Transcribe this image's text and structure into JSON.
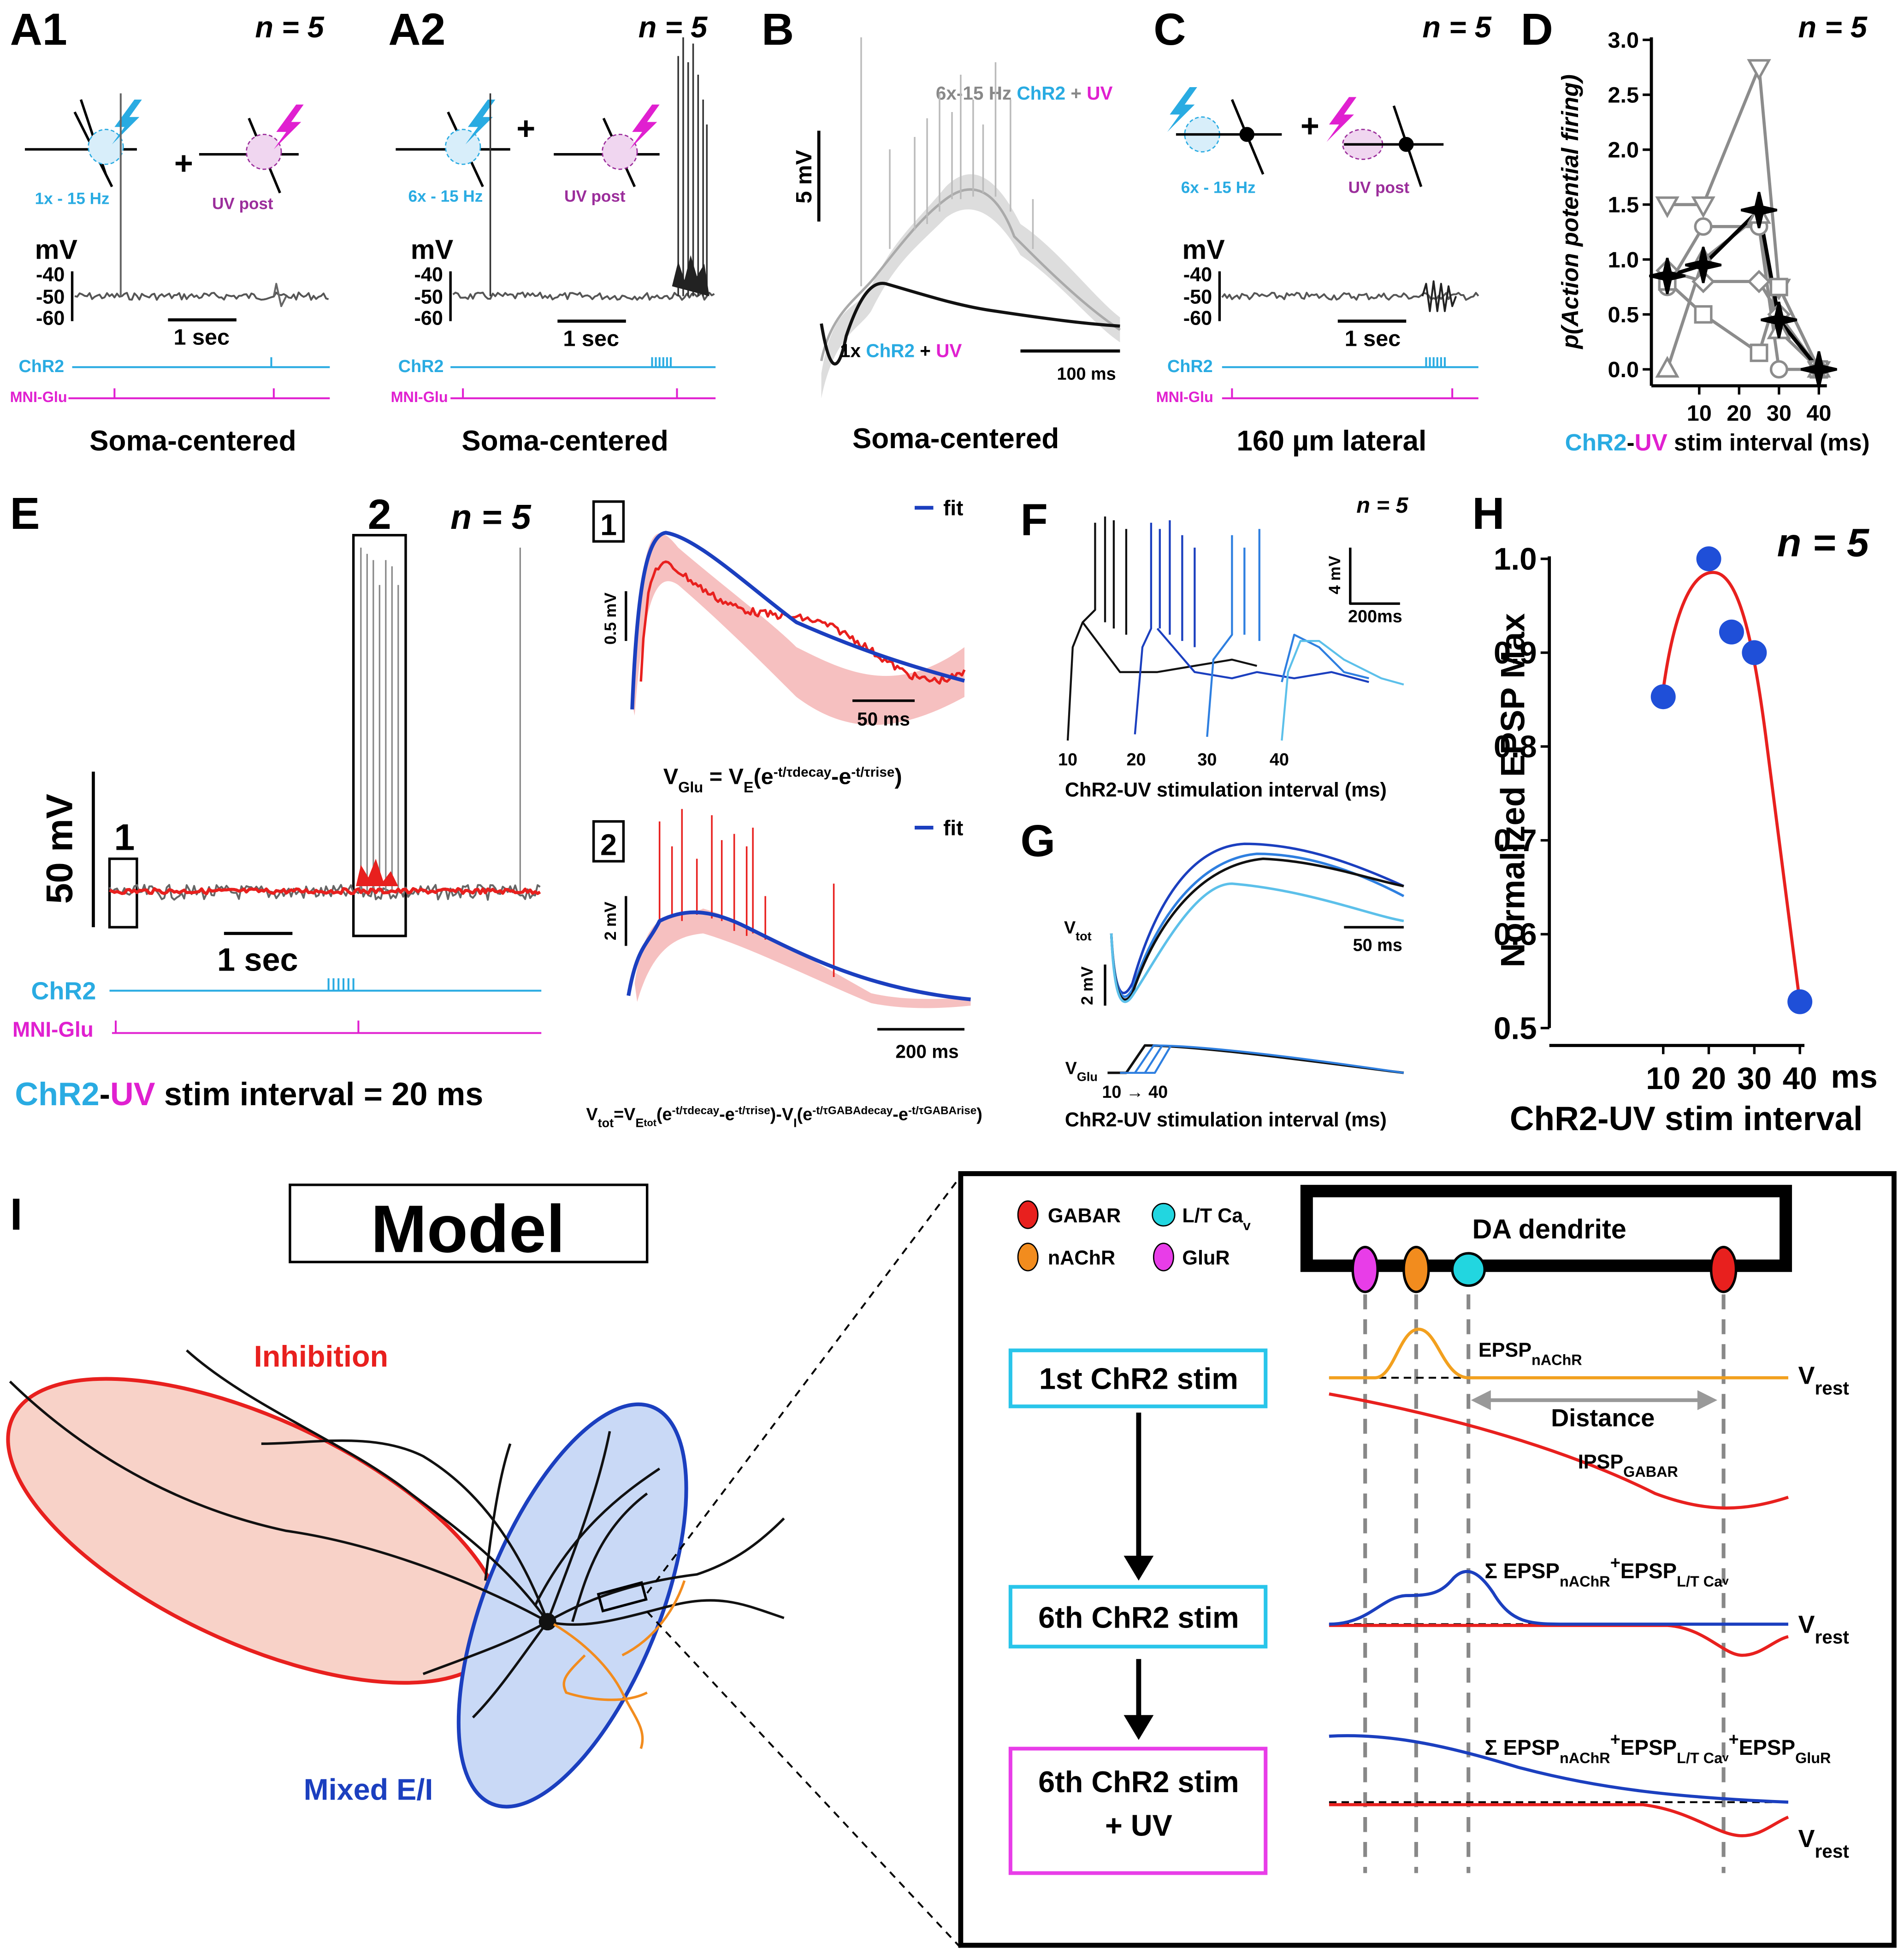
{
  "panels": {
    "A1": {
      "label": "A1",
      "n": "n = 5",
      "stim1": "1x - 15 Hz",
      "plus": "+",
      "stim2": "UV post",
      "unit": "mV",
      "yticks": [
        "-40",
        "-50",
        "-60"
      ],
      "scale": "1 sec",
      "chr2": "ChR2",
      "mni": "MNI-Glu",
      "caption": "Soma-centered"
    },
    "A2": {
      "label": "A2",
      "n": "n = 5",
      "stim1": "6x - 15 Hz",
      "plus": "+",
      "stim2": "UV post",
      "unit": "mV",
      "yticks": [
        "-40",
        "-50",
        "-60"
      ],
      "scale": "1 sec",
      "chr2": "ChR2",
      "mni": "MNI-Glu",
      "caption": "Soma-centered"
    },
    "B": {
      "label": "B",
      "top_legend": [
        "6x-15 Hz ",
        "ChR2",
        " + ",
        "UV"
      ],
      "bottom_legend": [
        "1x ",
        "ChR2",
        " + ",
        "UV"
      ],
      "yscale": "5 mV",
      "xscale": "100 ms",
      "caption": "Soma-centered"
    },
    "C": {
      "label": "C",
      "n": "n = 5",
      "stim1": "6x - 15 Hz",
      "plus": "+",
      "stim2": "UV post",
      "unit": "mV",
      "yticks": [
        "-40",
        "-50",
        "-60"
      ],
      "scale": "1 sec",
      "chr2": "ChR2",
      "mni": "MNI-Glu",
      "caption": "160 µm lateral"
    },
    "E": {
      "label": "E",
      "box1": "1",
      "box2": "2",
      "n": "n = 5",
      "yscale": "50 mV",
      "xscale": "1 sec",
      "chr2": "ChR2",
      "mni": "MNI-Glu",
      "caption": [
        "ChR2",
        "-",
        "UV",
        " stim interval = 20 ms"
      ],
      "inset1": {
        "label": "1",
        "legend": "fit",
        "yscale": "0.5 mV",
        "xscale": "50 ms",
        "equation": [
          "V",
          "Glu",
          " = V",
          "E",
          "(e",
          "-t/τdecay",
          "-e",
          "-t/τrise",
          ")"
        ]
      },
      "inset2": {
        "label": "2",
        "legend": "fit",
        "yscale": "2 mV",
        "xscale": "200 ms",
        "equation": [
          "V",
          "tot",
          "=V",
          "E",
          "tot",
          "(e",
          "-t/τdecay",
          "-e",
          "-t/τrise",
          ")-V",
          "I",
          "(e",
          "-t/τGABAdecay",
          "-e",
          "-t/τGABArise",
          ")"
        ]
      }
    },
    "F": {
      "label": "F",
      "n": "n = 5",
      "yscale": "4 mV",
      "xscale": "200ms",
      "intervals": [
        "10",
        "20",
        "30",
        "40"
      ],
      "xlabel": "ChR2-UV stimulation interval (ms)"
    },
    "G": {
      "label": "G",
      "vtot": [
        "V",
        "tot"
      ],
      "yscale": "2 mV",
      "xscale": "50 ms",
      "vglu": [
        "V",
        "Glu"
      ],
      "range": "10 → 40",
      "xlabel": "ChR2-UV stimulation interval (ms)"
    },
    "I": {
      "label": "I",
      "title": "Model",
      "inhibition": "Inhibition",
      "mixed": "Mixed E/I",
      "legend": {
        "gabar": "GABAR",
        "ltca": [
          "L/T Ca",
          "v"
        ],
        "nachr": "nAChR",
        "glur": "GluR"
      },
      "dendrite": "DA dendrite",
      "step1": "1st ChR2 stim",
      "step2": "6th ChR2 stim",
      "step3": [
        "6th ChR2 stim",
        "+ UV"
      ],
      "epsp1": [
        "EPSP",
        "nAChR"
      ],
      "distance": "Distance",
      "ipsp": [
        "IPSP",
        "GABAR"
      ],
      "vrest": [
        "V",
        "rest"
      ],
      "sum2": [
        "Σ EPSP",
        "nAChR",
        "+",
        "EPSP",
        "L/T Ca",
        "v"
      ],
      "sum3": [
        "Σ EPSP",
        "nAChR",
        "+",
        "EPSP",
        "L/T Ca",
        "v",
        "+",
        "EPSP",
        "GluR"
      ]
    }
  },
  "chart_data": [
    {
      "type": "line",
      "label": "D",
      "annotation": "n = 5",
      "ylabel": "p(Action potential firing)",
      "xlabel": [
        "ChR2",
        "-",
        "UV",
        " stim interval (ms)"
      ],
      "xlim": [
        -2,
        42
      ],
      "xticks": [
        10,
        20,
        30,
        40
      ],
      "ylim": [
        -0.15,
        3.0
      ],
      "yticks": [
        {
          "value": 0,
          "label": "0.0"
        },
        0.5,
        {
          "value": 1,
          "label": "1.0"
        },
        1.5,
        {
          "value": 2,
          "label": "2.0"
        },
        2.5,
        {
          "value": 3,
          "label": "3.0"
        }
      ],
      "series": [
        {
          "color": "#8c8c8c",
          "marker": "triangle-down",
          "x": [
            2,
            11,
            25,
            30,
            40
          ],
          "values": [
            1.5,
            1.5,
            2.75,
            0.75,
            0
          ]
        },
        {
          "color": "#8c8c8c",
          "marker": "circle",
          "x": [
            2,
            11,
            25,
            30,
            40
          ],
          "values": [
            0.75,
            1.3,
            1.3,
            0,
            0
          ]
        },
        {
          "color": "#8c8c8c",
          "marker": "square",
          "x": [
            2,
            11,
            25,
            30,
            40
          ],
          "values": [
            0.8,
            0.5,
            0.15,
            0.75,
            0
          ]
        },
        {
          "color": "#8c8c8c",
          "marker": "triangle-up",
          "x": [
            2,
            11,
            25,
            30,
            40
          ],
          "values": [
            0.0,
            1.0,
            1.4,
            0.35,
            0
          ]
        },
        {
          "color": "#8c8c8c",
          "marker": "diamond",
          "x": [
            2,
            11,
            25,
            30,
            40
          ],
          "values": [
            0.9,
            0.8,
            0.8,
            0.5,
            0
          ]
        },
        {
          "color": "#000000",
          "marker": "star",
          "x": [
            2,
            11,
            25,
            30,
            40
          ],
          "values": [
            0.85,
            0.95,
            1.45,
            0.45,
            0
          ]
        }
      ]
    },
    {
      "type": "scatter",
      "label": "H",
      "annotation": "n = 5",
      "ylabel": "Normalized EPSP Max",
      "xlabel": "ChR2-UV stim interval",
      "xunit": "ms",
      "xlim": [
        -15,
        41
      ],
      "xticks": [
        10,
        20,
        30,
        40
      ],
      "ylim": [
        0.5,
        1.0
      ],
      "yticks": [
        {
          "value": 0.5,
          "label": "0.5"
        },
        0.6,
        0.7,
        0.8,
        0.9,
        {
          "value": 1,
          "label": "1.0"
        }
      ],
      "x": [
        10,
        20,
        25,
        30,
        40
      ],
      "values": [
        0.853,
        1.0,
        0.922,
        0.9,
        0.528
      ],
      "color": "#1f4fd8",
      "fit_color": "#e8201e"
    }
  ]
}
